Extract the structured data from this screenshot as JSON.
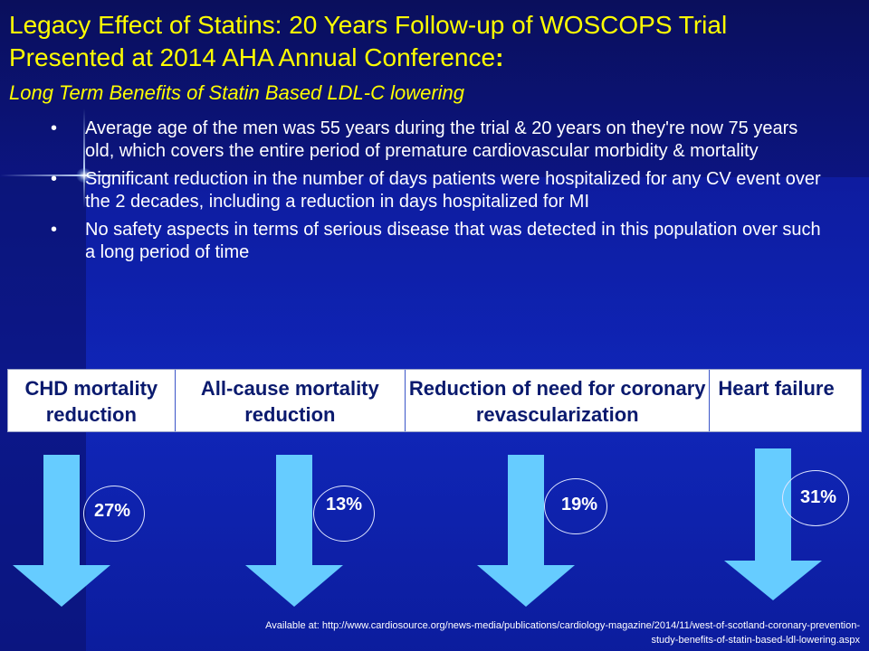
{
  "slide": {
    "title_line1": "Legacy Effect of Statins: 20 Years Follow-up of WOSCOPS Trial",
    "title_line2": "Presented at 2014 AHA Annual Conference",
    "title_colon": ":",
    "subtitle": "Long Term Benefits of Statin Based LDL-C lowering"
  },
  "bullets": [
    {
      "marker": "•",
      "text": "Average age of the men was 55 years during the trial & 20 years on they're now 75 years old, which covers the entire period of premature cardiovascular morbidity & mortality"
    },
    {
      "marker": "•",
      "text": "Significant reduction in the number of days patients were hospitalized for any CV event over the 2 decades, including a reduction in days hospitalized for MI"
    },
    {
      "marker": "•",
      "text": "No safety aspects in terms of serious disease that was detected in this population over such a long period of time"
    }
  ],
  "outcomes": [
    {
      "header": "CHD mortality reduction",
      "value": "27%"
    },
    {
      "header": "All-cause mortality reduction",
      "value": "13%"
    },
    {
      "header": "Reduction of need for coronary revascularization",
      "value": "19%"
    },
    {
      "header": "Heart failure",
      "value": "31%"
    }
  ],
  "source": {
    "line1": "Available at: http://www.cardiosource.org/news-media/publications/cardiology-magazine/2014/11/west-of-scotland-coronary-prevention-",
    "line2": "study-benefits-of-statin-based-ldl-lowering.aspx"
  },
  "colors": {
    "title": "#ffff00",
    "body_text": "#ffffff",
    "header_text": "#0a1a6e",
    "arrow": "#66ccff",
    "background": "#0c168a"
  }
}
